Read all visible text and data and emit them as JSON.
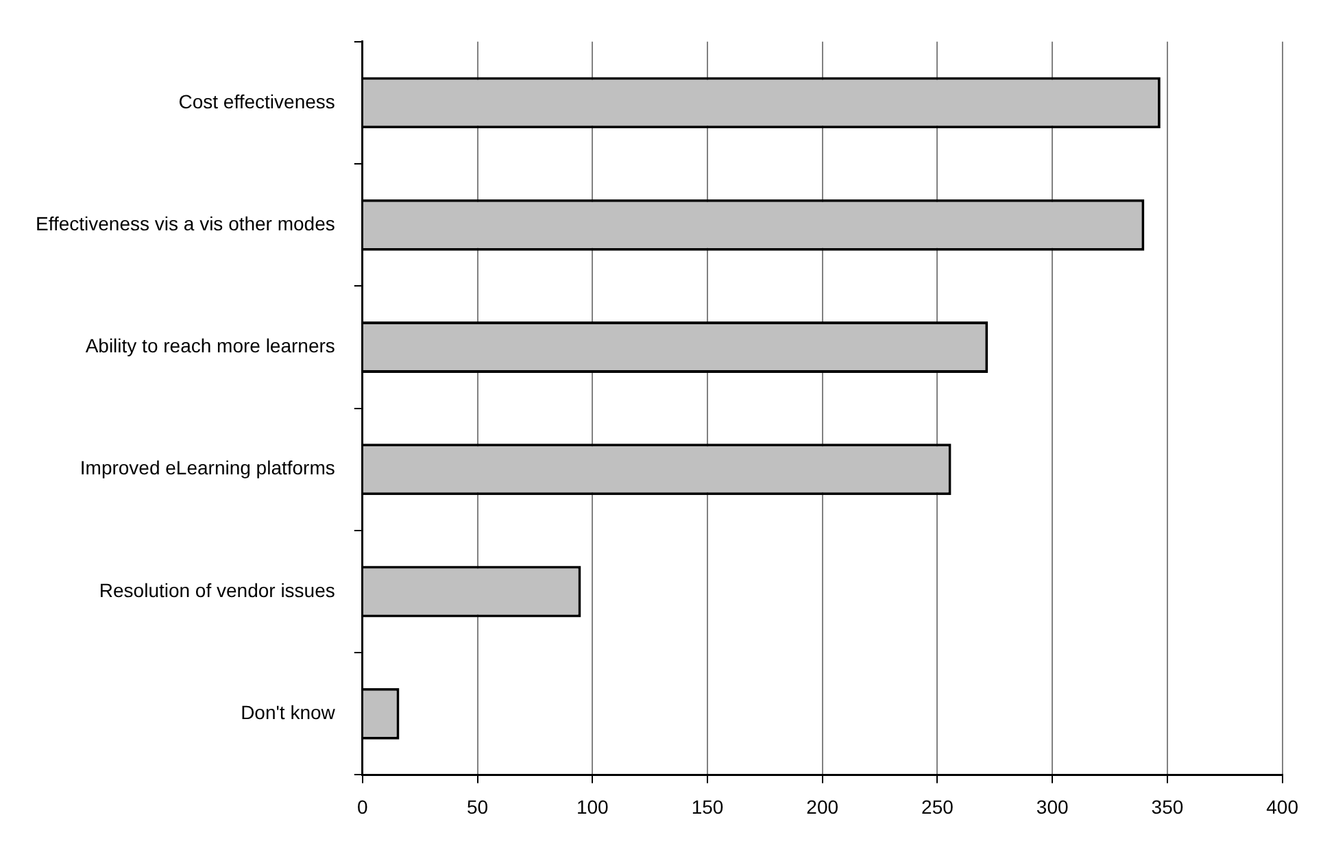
{
  "chart_data": {
    "type": "bar",
    "orientation": "horizontal",
    "categories": [
      "Cost effectiveness",
      "Effectiveness vis a vis other modes",
      "Ability to reach more learners",
      "Improved eLearning platforms",
      "Resolution of vendor issues",
      "Don't know"
    ],
    "values": [
      347,
      340,
      272,
      256,
      95,
      16
    ],
    "color": "#c0c0c0",
    "xlim": [
      0,
      400
    ],
    "xticks": [
      0,
      50,
      100,
      150,
      200,
      250,
      300,
      350,
      400
    ],
    "grid": "x",
    "legend": false
  }
}
